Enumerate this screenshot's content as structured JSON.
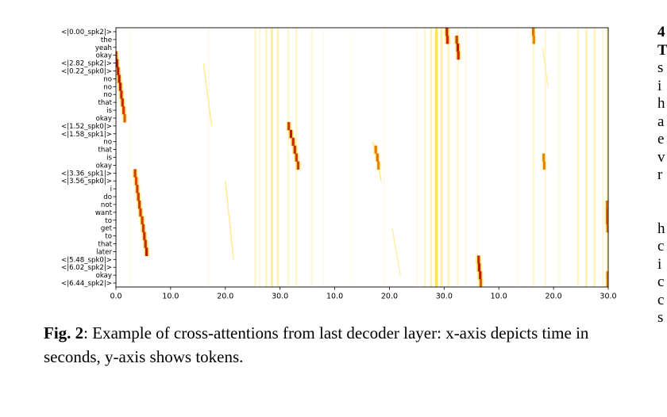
{
  "caption": {
    "label": "Fig. 2",
    "sep": ":",
    "text": " Example of cross-attentions from last decoder layer: x-axis depicts time in seconds, y-axis shows tokens."
  },
  "edge_text": [
    "4",
    "T",
    "s",
    "i",
    "h",
    "a",
    "e",
    "v",
    "r",
    "",
    "",
    "h",
    "c",
    "i",
    "c",
    "c",
    "s"
  ],
  "chart_data": {
    "type": "heatmap",
    "colormap": "hot_r",
    "colors": {
      "low": "#ffffff",
      "mid": "#ffd000",
      "high": "#c01800"
    },
    "y_tokens": [
      "<|0.00_spk2|>",
      "the",
      "yeah",
      "okay",
      "<|2.82_spk2|>",
      "<|0.22_spk0|>",
      "no",
      "no",
      "no",
      "that",
      "is",
      "okay",
      "<|1.52_spk0|>",
      "<|1.58_spk1|>",
      "no",
      "that",
      "is",
      "okay",
      "<|3.36_spk1|>",
      "<|3.56_spk0|>",
      "i",
      "do",
      "not",
      "want",
      "to",
      "get",
      "to",
      "that",
      "later",
      "<|5.48_spk0|>",
      "<|6.02_spk2|>",
      "okay",
      "<|6.44_spk2|>"
    ],
    "x_ticks": [
      "0.0",
      "10.0",
      "20.0",
      "30.0",
      "10.0",
      "20.0",
      "30.0",
      "10.0",
      "20.0",
      "30.0"
    ],
    "segments": [
      {
        "start": 0,
        "end": 30
      },
      {
        "start": 0,
        "end": 30
      },
      {
        "start": 0,
        "end": 30
      }
    ],
    "vertical_bands": [
      {
        "t": 2.5,
        "strength": 0.15
      },
      {
        "t": 17.0,
        "strength": 0.2
      },
      {
        "t": 25.5,
        "strength": 0.35
      },
      {
        "t": 26.3,
        "strength": 0.3
      },
      {
        "t": 27.5,
        "strength": 0.4
      },
      {
        "t": 28.5,
        "strength": 0.55
      },
      {
        "t": 29.6,
        "strength": 0.45
      },
      {
        "t": 31.5,
        "strength": 0.3
      },
      {
        "t": 33.0,
        "strength": 0.35
      },
      {
        "t": 35.8,
        "strength": 0.25
      },
      {
        "t": 38.0,
        "strength": 0.15
      },
      {
        "t": 43.0,
        "strength": 0.1
      },
      {
        "t": 49.0,
        "strength": 0.2
      },
      {
        "t": 55.0,
        "strength": 0.2
      },
      {
        "t": 56.5,
        "strength": 0.35
      },
      {
        "t": 57.6,
        "strength": 0.45
      },
      {
        "t": 58.6,
        "strength": 0.75
      },
      {
        "t": 59.5,
        "strength": 0.5
      },
      {
        "t": 60.8,
        "strength": 0.4
      },
      {
        "t": 62.5,
        "strength": 0.3
      },
      {
        "t": 64.0,
        "strength": 0.25
      },
      {
        "t": 66.0,
        "strength": 0.2
      },
      {
        "t": 73.5,
        "strength": 0.2
      },
      {
        "t": 76.3,
        "strength": 0.35
      },
      {
        "t": 78.5,
        "strength": 0.3
      },
      {
        "t": 81.0,
        "strength": 0.2
      },
      {
        "t": 84.5,
        "strength": 0.35
      },
      {
        "t": 86.0,
        "strength": 0.45
      },
      {
        "t": 87.5,
        "strength": 0.4
      },
      {
        "t": 89.0,
        "strength": 0.3
      },
      {
        "t": 89.8,
        "strength": 0.45
      }
    ],
    "attention_peaks": [
      {
        "token": 3,
        "t": 0.0,
        "w": 1.0
      },
      {
        "token": 4,
        "t": 0.2,
        "w": 1.0
      },
      {
        "token": 5,
        "t": 0.4,
        "w": 1.0
      },
      {
        "token": 6,
        "t": 0.6,
        "w": 1.0
      },
      {
        "token": 7,
        "t": 0.8,
        "w": 1.0
      },
      {
        "token": 8,
        "t": 1.0,
        "w": 0.9
      },
      {
        "token": 9,
        "t": 1.2,
        "w": 0.9
      },
      {
        "token": 10,
        "t": 1.4,
        "w": 0.8
      },
      {
        "token": 11,
        "t": 1.6,
        "w": 0.6
      },
      {
        "token": 12,
        "t": 31.6,
        "w": 0.8
      },
      {
        "token": 13,
        "t": 32.0,
        "w": 1.0
      },
      {
        "token": 14,
        "t": 32.4,
        "w": 0.9
      },
      {
        "token": 15,
        "t": 32.7,
        "w": 0.9
      },
      {
        "token": 16,
        "t": 33.0,
        "w": 0.8
      },
      {
        "token": 17,
        "t": 33.3,
        "w": 0.8
      },
      {
        "token": 18,
        "t": 3.5,
        "w": 0.8
      },
      {
        "token": 19,
        "t": 3.7,
        "w": 0.7
      },
      {
        "token": 20,
        "t": 3.9,
        "w": 0.8
      },
      {
        "token": 21,
        "t": 4.1,
        "w": 0.8
      },
      {
        "token": 22,
        "t": 4.3,
        "w": 0.8
      },
      {
        "token": 23,
        "t": 4.5,
        "w": 0.8
      },
      {
        "token": 24,
        "t": 4.8,
        "w": 0.8
      },
      {
        "token": 25,
        "t": 5.0,
        "w": 0.8
      },
      {
        "token": 26,
        "t": 5.2,
        "w": 0.9
      },
      {
        "token": 27,
        "t": 5.4,
        "w": 0.9
      },
      {
        "token": 28,
        "t": 5.6,
        "w": 1.0
      },
      {
        "token": 29,
        "t": 66.3,
        "w": 0.9
      },
      {
        "token": 30,
        "t": 66.4,
        "w": 1.0
      },
      {
        "token": 31,
        "t": 66.6,
        "w": 1.0
      },
      {
        "token": 32,
        "t": 66.7,
        "w": 0.6
      },
      {
        "token": 0,
        "t": 60.5,
        "w": 0.9
      },
      {
        "token": 1,
        "t": 60.6,
        "w": 0.9
      },
      {
        "token": 1,
        "t": 62.3,
        "w": 0.8
      },
      {
        "token": 2,
        "t": 62.5,
        "w": 1.0
      },
      {
        "token": 3,
        "t": 62.6,
        "w": 0.9
      },
      {
        "token": 0,
        "t": 76.3,
        "w": 0.5
      },
      {
        "token": 1,
        "t": 76.4,
        "w": 0.4
      },
      {
        "token": 16,
        "t": 78.2,
        "w": 0.4
      },
      {
        "token": 17,
        "t": 78.3,
        "w": 0.4
      },
      {
        "token": 15,
        "t": 47.5,
        "w": 0.45
      },
      {
        "token": 16,
        "t": 47.8,
        "w": 0.5
      },
      {
        "token": 17,
        "t": 48.0,
        "w": 0.4
      },
      {
        "token": 22,
        "t": 89.8,
        "w": 0.5
      },
      {
        "token": 23,
        "t": 89.8,
        "w": 0.6
      },
      {
        "token": 24,
        "t": 89.8,
        "w": 0.6
      },
      {
        "token": 25,
        "t": 89.9,
        "w": 0.5
      },
      {
        "token": 31,
        "t": 89.9,
        "w": 0.5
      },
      {
        "token": 32,
        "t": 89.9,
        "w": 0.4
      }
    ],
    "faint_streaks": [
      {
        "from_token": 4,
        "from_t": 16.0,
        "to_token": 12,
        "to_t": 17.5,
        "strength": 0.25
      },
      {
        "from_token": 19,
        "from_t": 20.0,
        "to_token": 29,
        "to_t": 21.5,
        "strength": 0.25
      },
      {
        "from_token": 14,
        "from_t": 47.0,
        "to_token": 19,
        "to_t": 48.5,
        "strength": 0.3
      },
      {
        "from_token": 25,
        "from_t": 50.5,
        "to_token": 31,
        "to_t": 52.0,
        "strength": 0.2
      },
      {
        "from_token": 2,
        "from_t": 78.0,
        "to_token": 7,
        "to_t": 79.0,
        "strength": 0.2
      }
    ]
  }
}
